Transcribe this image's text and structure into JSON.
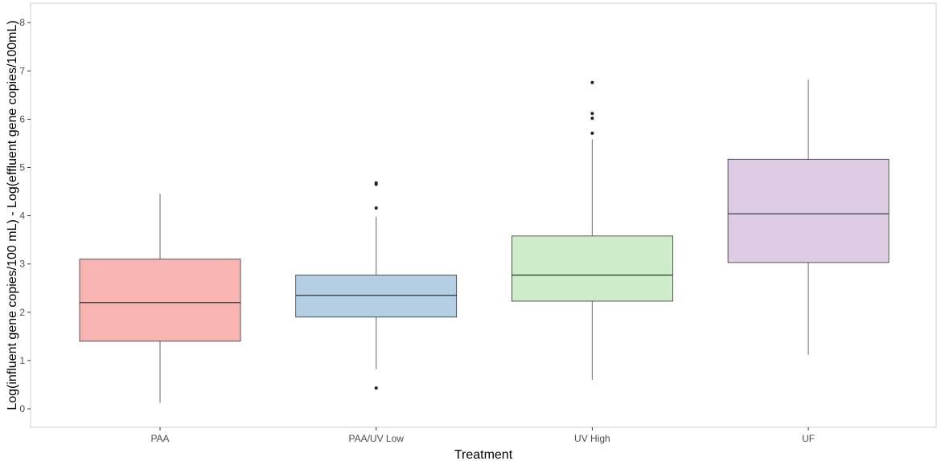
{
  "chart_data": {
    "type": "box",
    "xlabel": "Treatment",
    "ylabel": "Log(influent gene copies/100 mL) - Log(effluent gene copies/100mL)",
    "ylim": [
      -0.35,
      8.35
    ],
    "y_ticks": [
      0,
      1,
      2,
      3,
      4,
      5,
      6,
      7,
      8
    ],
    "y_tick_labels": [
      "0",
      "1",
      "2",
      "3",
      "4",
      "5",
      "6",
      "7",
      "8"
    ],
    "grid": false,
    "legend": "none",
    "categories": [
      "PAA",
      "PAA/UV Low",
      "UV High",
      "UF"
    ],
    "boxes": [
      {
        "category": "PAA",
        "whisker_low": 0.12,
        "q1": 1.4,
        "median": 2.2,
        "q3": 3.1,
        "whisker_high": 4.45,
        "outliers": [],
        "fill": "#f8b4b0"
      },
      {
        "category": "PAA/UV Low",
        "whisker_low": 0.82,
        "q1": 1.9,
        "median": 2.35,
        "q3": 2.77,
        "whisker_high": 3.98,
        "outliers": [
          0.43,
          4.16,
          4.65,
          4.68
        ],
        "fill": "#b4cfe3"
      },
      {
        "category": "UV High",
        "whisker_low": 0.6,
        "q1": 2.23,
        "median": 2.77,
        "q3": 3.58,
        "whisker_high": 5.58,
        "outliers": [
          5.71,
          6.02,
          6.12,
          6.76
        ],
        "fill": "#cdecc8"
      },
      {
        "category": "UF",
        "whisker_low": 1.12,
        "q1": 3.03,
        "median": 4.04,
        "q3": 5.17,
        "whisker_high": 6.82,
        "outliers": [],
        "fill": "#decce4"
      }
    ]
  }
}
